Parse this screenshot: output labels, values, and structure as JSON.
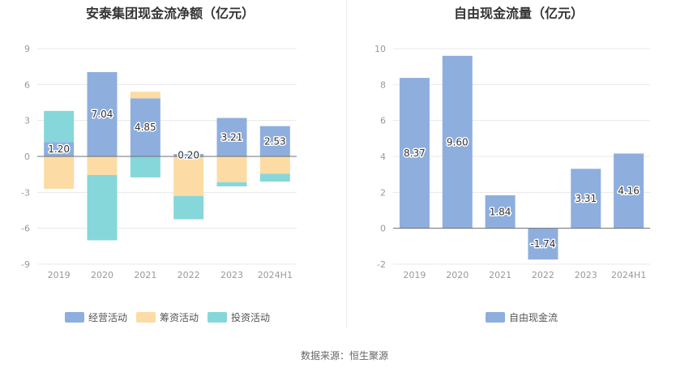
{
  "source": "数据来源：恒生聚源",
  "chart_data": [
    {
      "type": "bar",
      "stacked": true,
      "title": "安泰集团现金流净额（亿元）",
      "categories": [
        "2019",
        "2020",
        "2021",
        "2022",
        "2023",
        "2024H1"
      ],
      "ylim": [
        -9,
        9
      ],
      "yticks": [
        9,
        6,
        3,
        0,
        -3,
        -6,
        -9
      ],
      "legend_position": "bottom",
      "series": [
        {
          "name": "经营活动",
          "color": "#8eaede",
          "values": [
            1.2,
            7.04,
            4.85,
            0.2,
            3.21,
            2.53
          ],
          "labels": [
            "1.20",
            "7.04",
            "4.85",
            "0.20",
            "3.21",
            "2.53"
          ]
        },
        {
          "name": "筹资活动",
          "color": "#fcdca4",
          "values": [
            -2.7,
            -1.55,
            0.55,
            -3.3,
            -2.15,
            -1.45
          ]
        },
        {
          "name": "投资活动",
          "color": "#86d7d9",
          "values": [
            2.6,
            -5.45,
            -1.75,
            -1.95,
            -0.35,
            -0.65
          ]
        }
      ]
    },
    {
      "type": "bar",
      "title": "自由现金流量（亿元）",
      "categories": [
        "2019",
        "2020",
        "2021",
        "2022",
        "2023",
        "2024H1"
      ],
      "ylim": [
        -2,
        10
      ],
      "yticks": [
        10,
        8,
        6,
        4,
        2,
        0,
        -2
      ],
      "legend_position": "bottom",
      "series": [
        {
          "name": "自由现金流",
          "color": "#8eaede",
          "values": [
            8.37,
            9.6,
            1.84,
            -1.74,
            3.31,
            4.16
          ],
          "labels": [
            "8.37",
            "9.60",
            "1.84",
            "-1.74",
            "3.31",
            "4.16"
          ]
        }
      ]
    }
  ]
}
